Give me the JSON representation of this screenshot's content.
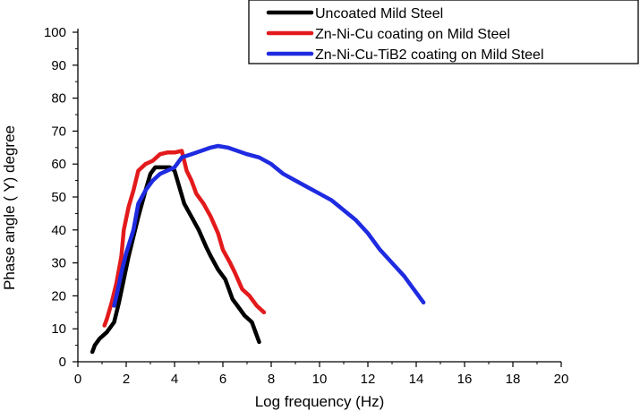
{
  "chart_data": {
    "type": "line",
    "title": "",
    "xlabel": "Log frequency (Hz)",
    "ylabel": "Phase angle ( Y) degree",
    "xlim": [
      0,
      20
    ],
    "ylim": [
      0,
      100
    ],
    "x_ticks": [
      0,
      2,
      4,
      6,
      8,
      10,
      12,
      14,
      16,
      18,
      20
    ],
    "y_ticks": [
      0,
      10,
      20,
      30,
      40,
      50,
      60,
      70,
      80,
      90,
      100
    ],
    "x_tick_labels": [
      "0",
      "2",
      "4",
      "6",
      "8",
      "10",
      "12",
      "14",
      "16",
      "18",
      "20"
    ],
    "y_tick_labels": [
      "0",
      "10",
      "20",
      "30",
      "40",
      "50",
      "60",
      "70",
      "80",
      "90",
      "100"
    ],
    "grid": false,
    "legend": {
      "placement": "top-right"
    },
    "series": [
      {
        "name": "Uncoated Mild Steel",
        "color": "#000000",
        "x": [
          0.6,
          0.7,
          0.9,
          1.2,
          1.5,
          1.7,
          1.9,
          2.1,
          2.3,
          2.5,
          2.8,
          3.0,
          3.2,
          3.5,
          3.8,
          4.0,
          4.2,
          4.4,
          4.7,
          5.0,
          5.3,
          5.5,
          5.8,
          6.1,
          6.4,
          6.6,
          6.9,
          7.2,
          7.5
        ],
        "y": [
          3,
          5,
          7,
          9,
          12,
          18,
          25,
          32,
          38,
          44,
          52,
          57,
          59,
          59,
          59,
          58,
          53,
          48,
          44,
          40,
          35,
          32,
          28,
          25,
          19,
          17,
          14,
          12,
          6
        ]
      },
      {
        "name": "Zn-Ni-Cu coating on Mild Steel",
        "color": "#e31a1c",
        "x": [
          1.1,
          1.2,
          1.4,
          1.6,
          1.8,
          1.9,
          2.1,
          2.3,
          2.5,
          2.8,
          3.1,
          3.4,
          3.7,
          4.0,
          4.3,
          4.5,
          4.7,
          4.9,
          5.2,
          5.5,
          5.8,
          6.0,
          6.3,
          6.5,
          6.8,
          7.1,
          7.4,
          7.7
        ],
        "y": [
          11,
          13,
          18,
          24,
          32,
          40,
          47,
          52,
          58,
          60,
          61,
          63,
          63.5,
          63.5,
          64,
          58,
          55,
          51,
          48,
          44,
          39,
          34,
          30,
          27,
          22,
          20,
          17,
          15
        ]
      },
      {
        "name": "Zn-Ni-Cu-TiB2 coating on Mild Steel",
        "color": "#1f2be0",
        "x": [
          1.5,
          1.6,
          1.8,
          2.0,
          2.3,
          2.5,
          2.8,
          3.1,
          3.4,
          3.7,
          4.0,
          4.3,
          4.7,
          5.1,
          5.5,
          5.8,
          6.2,
          6.6,
          7.0,
          7.5,
          8.0,
          8.5,
          9.0,
          9.5,
          10.0,
          10.5,
          11.0,
          11.5,
          12.0,
          12.5,
          13.0,
          13.5,
          13.8,
          14.1,
          14.3
        ],
        "y": [
          17,
          20,
          27,
          33,
          40,
          48,
          52,
          55,
          57,
          58,
          59,
          62,
          63,
          64,
          65,
          65.5,
          65,
          64,
          63,
          62,
          60,
          57,
          55,
          53,
          51,
          49,
          46,
          43,
          39,
          34,
          30,
          26,
          23,
          20,
          18
        ]
      }
    ]
  }
}
